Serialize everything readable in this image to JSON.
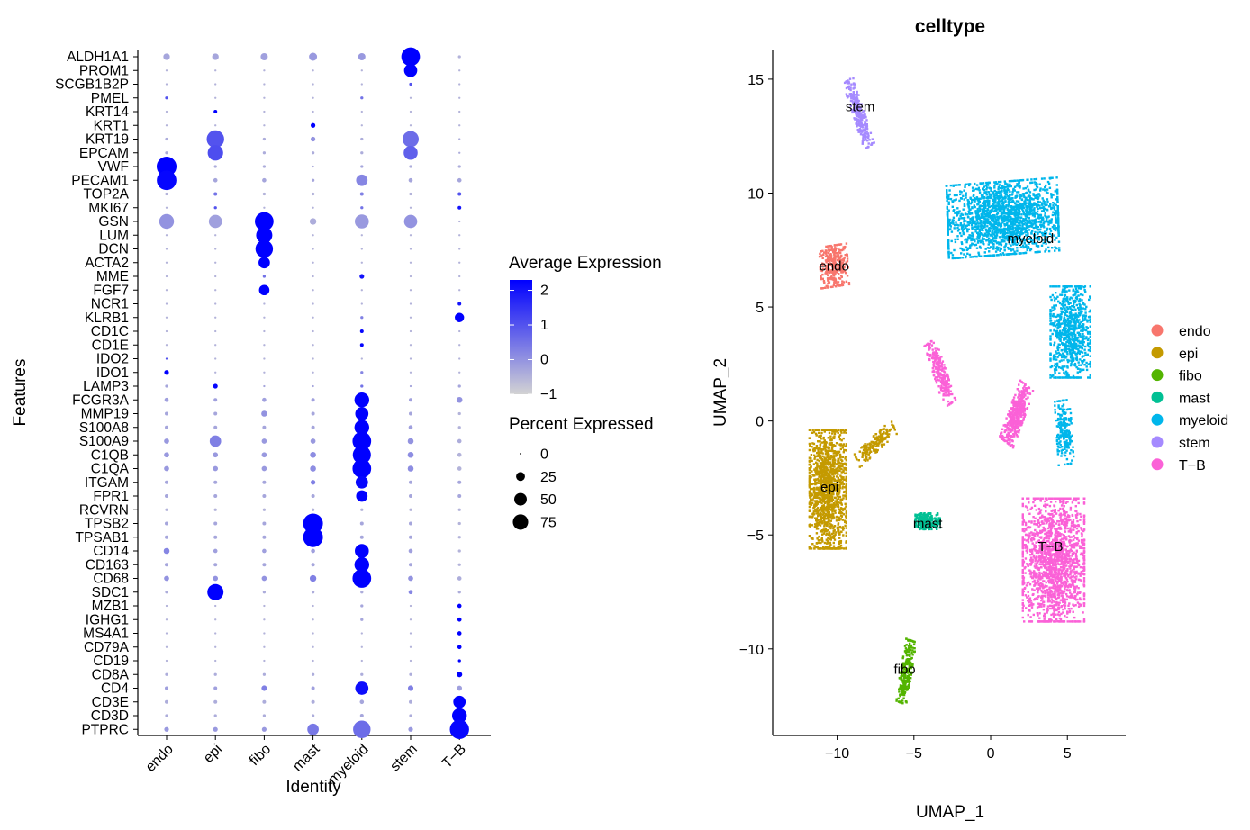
{
  "colors": {
    "expr_low": "#d3d3d3",
    "expr_high": "#0000ff",
    "endo": "#f8766d",
    "epi": "#c49a00",
    "fibo": "#53b400",
    "mast": "#00c094",
    "myeloid": "#00b6eb",
    "stem": "#a58aff",
    "T-B": "#fb61d7"
  },
  "chart_data": [
    {
      "type": "scatter",
      "subtype": "dotplot",
      "title": "",
      "xlabel": "Identity",
      "ylabel": "Features",
      "identities": [
        "endo",
        "epi",
        "fibo",
        "mast",
        "myeloid",
        "stem",
        "T−B"
      ],
      "features": [
        "ALDH1A1",
        "PROM1",
        "SCGB1B2P",
        "PMEL",
        "KRT14",
        "KRT1",
        "KRT19",
        "EPCAM",
        "VWF",
        "PECAM1",
        "TOP2A",
        "MKI67",
        "GSN",
        "LUM",
        "DCN",
        "ACTA2",
        "MME",
        "FGF7",
        "NCR1",
        "KLRB1",
        "CD1C",
        "CD1E",
        "IDO2",
        "IDO1",
        "LAMP3",
        "FCGR3A",
        "MMP19",
        "S100A8",
        "S100A9",
        "C1QB",
        "C1QA",
        "ITGAM",
        "FPR1",
        "RCVRN",
        "TPSB2",
        "TPSAB1",
        "CD14",
        "CD163",
        "CD68",
        "SDC1",
        "MZB1",
        "IGHG1",
        "MS4A1",
        "CD79A",
        "CD19",
        "CD8A",
        "CD4",
        "CD3E",
        "CD3D",
        "PTPRC"
      ],
      "percent_expressed": [
        [
          10,
          10,
          12,
          15,
          12,
          80,
          2
        ],
        [
          1,
          1,
          1,
          1,
          1,
          40,
          1
        ],
        [
          1,
          1,
          1,
          1,
          1,
          2,
          1
        ],
        [
          2,
          1,
          1,
          1,
          2,
          1,
          1
        ],
        [
          1,
          3,
          1,
          1,
          1,
          1,
          1
        ],
        [
          1,
          1,
          1,
          5,
          1,
          1,
          1
        ],
        [
          2,
          70,
          2,
          5,
          2,
          60,
          1
        ],
        [
          2,
          55,
          2,
          2,
          2,
          45,
          1
        ],
        [
          90,
          2,
          2,
          1,
          2,
          2,
          2
        ],
        [
          88,
          4,
          4,
          2,
          30,
          4,
          4
        ],
        [
          2,
          3,
          2,
          2,
          3,
          2,
          3
        ],
        [
          1,
          2,
          1,
          1,
          2,
          1,
          3
        ],
        [
          50,
          40,
          80,
          10,
          45,
          40,
          1
        ],
        [
          1,
          1,
          60,
          1,
          1,
          1,
          1
        ],
        [
          1,
          1,
          70,
          1,
          1,
          1,
          1
        ],
        [
          1,
          1,
          30,
          1,
          1,
          1,
          1
        ],
        [
          1,
          1,
          2,
          1,
          5,
          1,
          1
        ],
        [
          1,
          1,
          25,
          1,
          1,
          1,
          1
        ],
        [
          1,
          1,
          1,
          1,
          1,
          1,
          3
        ],
        [
          1,
          1,
          1,
          1,
          2,
          1,
          20
        ],
        [
          1,
          1,
          1,
          1,
          3,
          1,
          1
        ],
        [
          1,
          1,
          1,
          1,
          3,
          1,
          1
        ],
        [
          1,
          1,
          1,
          1,
          1,
          1,
          1
        ],
        [
          5,
          1,
          1,
          1,
          2,
          1,
          1
        ],
        [
          2,
          5,
          1,
          1,
          2,
          1,
          2
        ],
        [
          4,
          3,
          4,
          3,
          50,
          3,
          8
        ],
        [
          3,
          3,
          8,
          3,
          40,
          3,
          2
        ],
        [
          3,
          3,
          3,
          3,
          50,
          4,
          2
        ],
        [
          6,
          30,
          6,
          6,
          80,
          8,
          4
        ],
        [
          6,
          6,
          6,
          8,
          75,
          8,
          4
        ],
        [
          6,
          6,
          6,
          8,
          80,
          8,
          4
        ],
        [
          3,
          3,
          3,
          5,
          35,
          3,
          3
        ],
        [
          3,
          3,
          3,
          3,
          30,
          3,
          3
        ],
        [
          2,
          2,
          2,
          2,
          2,
          2,
          2
        ],
        [
          3,
          3,
          3,
          90,
          3,
          3,
          2
        ],
        [
          3,
          3,
          3,
          90,
          3,
          3,
          2
        ],
        [
          8,
          4,
          4,
          4,
          45,
          4,
          2
        ],
        [
          3,
          3,
          3,
          3,
          50,
          3,
          2
        ],
        [
          6,
          6,
          6,
          10,
          80,
          6,
          4
        ],
        [
          2,
          60,
          2,
          2,
          2,
          4,
          2
        ],
        [
          1,
          1,
          1,
          1,
          2,
          1,
          4
        ],
        [
          1,
          1,
          1,
          1,
          2,
          1,
          4
        ],
        [
          1,
          1,
          1,
          1,
          1,
          1,
          4
        ],
        [
          1,
          1,
          1,
          1,
          1,
          1,
          4
        ],
        [
          1,
          1,
          1,
          1,
          1,
          1,
          2
        ],
        [
          2,
          2,
          2,
          2,
          2,
          2,
          7
        ],
        [
          3,
          3,
          7,
          3,
          40,
          7,
          6
        ],
        [
          3,
          3,
          3,
          3,
          4,
          3,
          35
        ],
        [
          2,
          2,
          2,
          2,
          3,
          2,
          50
        ],
        [
          5,
          5,
          5,
          30,
          70,
          5,
          85
        ]
      ],
      "average_expression": [
        [
          -0.3,
          -0.3,
          -0.2,
          -0.1,
          -0.1,
          2.3,
          -0.5
        ],
        [
          -0.5,
          -0.5,
          -0.5,
          -0.5,
          -0.5,
          2.3,
          -0.5
        ],
        [
          -0.5,
          -0.5,
          -0.5,
          -0.5,
          -0.5,
          1.0,
          -0.5
        ],
        [
          1.0,
          -0.5,
          -0.5,
          -0.5,
          0.5,
          -0.5,
          -0.5
        ],
        [
          -0.5,
          2.3,
          -0.5,
          -0.5,
          -0.5,
          -0.5,
          -0.5
        ],
        [
          -0.5,
          -0.5,
          -0.5,
          2.3,
          -0.5,
          -0.5,
          -0.5
        ],
        [
          -0.4,
          1.0,
          -0.4,
          0.0,
          -0.4,
          0.6,
          -0.4
        ],
        [
          -0.4,
          1.1,
          -0.4,
          -0.4,
          -0.4,
          0.8,
          -0.4
        ],
        [
          2.3,
          -0.4,
          -0.4,
          -0.4,
          -0.3,
          -0.4,
          -0.4
        ],
        [
          2.2,
          -0.3,
          -0.3,
          -0.3,
          0.2,
          -0.3,
          -0.3
        ],
        [
          -0.5,
          0.5,
          -0.5,
          -0.5,
          0.3,
          -0.5,
          1.0
        ],
        [
          -0.5,
          1.0,
          -0.5,
          -0.5,
          0.5,
          -0.5,
          2.0
        ],
        [
          0.0,
          -0.2,
          2.3,
          -0.4,
          -0.1,
          0.0,
          -0.5
        ],
        [
          -0.5,
          -0.5,
          2.3,
          -0.5,
          -0.5,
          -0.5,
          -0.5
        ],
        [
          -0.5,
          -0.5,
          2.3,
          -0.5,
          -0.5,
          -0.5,
          -0.5
        ],
        [
          -0.5,
          -0.5,
          2.3,
          -0.5,
          -0.5,
          -0.5,
          -0.5
        ],
        [
          -0.5,
          -0.5,
          0.5,
          -0.5,
          2.0,
          -0.5,
          -0.5
        ],
        [
          -0.5,
          -0.5,
          2.3,
          -0.5,
          -0.5,
          -0.5,
          -0.5
        ],
        [
          -0.5,
          -0.5,
          -0.5,
          -0.5,
          -0.5,
          -0.5,
          2.0
        ],
        [
          -0.5,
          -0.5,
          -0.5,
          -0.5,
          0.3,
          -0.5,
          2.3
        ],
        [
          -0.5,
          -0.5,
          -0.5,
          -0.5,
          2.2,
          -0.5,
          -0.5
        ],
        [
          -0.5,
          -0.5,
          -0.5,
          -0.5,
          2.2,
          -0.5,
          -0.5
        ],
        [
          1.0,
          -0.5,
          -0.5,
          -0.5,
          -0.5,
          -0.5,
          -0.5
        ],
        [
          2.3,
          -0.5,
          -0.5,
          -0.5,
          0.2,
          -0.5,
          -0.5
        ],
        [
          -0.3,
          2.2,
          -0.3,
          -0.3,
          0.5,
          -0.3,
          -0.3
        ],
        [
          -0.2,
          -0.2,
          -0.2,
          -0.2,
          2.3,
          -0.2,
          0.0
        ],
        [
          -0.3,
          -0.3,
          0.0,
          -0.3,
          2.3,
          -0.3,
          -0.5
        ],
        [
          -0.3,
          -0.3,
          -0.3,
          -0.3,
          2.3,
          -0.2,
          -0.5
        ],
        [
          -0.1,
          0.3,
          -0.1,
          -0.1,
          2.3,
          0.0,
          -0.4
        ],
        [
          -0.1,
          -0.1,
          -0.1,
          0.1,
          2.3,
          0.1,
          -0.5
        ],
        [
          -0.1,
          -0.1,
          -0.1,
          0.1,
          2.3,
          0.1,
          -0.5
        ],
        [
          -0.3,
          -0.3,
          -0.3,
          0.3,
          2.2,
          -0.3,
          -0.3
        ],
        [
          -0.3,
          -0.3,
          -0.3,
          -0.3,
          2.3,
          -0.3,
          -0.3
        ],
        [
          -0.5,
          -0.5,
          -0.5,
          -0.5,
          -0.5,
          -0.5,
          -0.5
        ],
        [
          -0.3,
          -0.3,
          -0.3,
          2.3,
          -0.3,
          -0.3,
          -0.5
        ],
        [
          -0.3,
          -0.3,
          -0.3,
          2.3,
          -0.3,
          -0.3,
          -0.5
        ],
        [
          0.2,
          -0.2,
          -0.2,
          -0.2,
          2.3,
          -0.2,
          -0.5
        ],
        [
          -0.3,
          -0.3,
          -0.3,
          -0.3,
          2.3,
          -0.3,
          -0.5
        ],
        [
          0.0,
          0.0,
          0.0,
          0.3,
          2.3,
          0.0,
          -0.4
        ],
        [
          -0.4,
          2.3,
          -0.4,
          -0.4,
          -0.4,
          0.2,
          -0.4
        ],
        [
          -0.5,
          -0.5,
          -0.5,
          -0.5,
          -0.3,
          -0.5,
          2.3
        ],
        [
          -0.5,
          -0.5,
          -0.5,
          -0.5,
          -0.3,
          -0.5,
          2.3
        ],
        [
          -0.5,
          -0.5,
          -0.5,
          -0.5,
          -0.5,
          -0.5,
          2.3
        ],
        [
          -0.5,
          -0.5,
          -0.5,
          -0.5,
          -0.5,
          -0.5,
          2.3
        ],
        [
          -0.5,
          -0.5,
          -0.5,
          -0.5,
          -0.5,
          -0.5,
          2.3
        ],
        [
          -0.4,
          -0.4,
          -0.4,
          -0.4,
          -0.4,
          -0.4,
          2.3
        ],
        [
          -0.2,
          -0.2,
          0.3,
          -0.2,
          2.1,
          0.3,
          -0.2
        ],
        [
          -0.4,
          -0.4,
          -0.4,
          -0.4,
          -0.3,
          -0.4,
          2.3
        ],
        [
          -0.4,
          -0.4,
          -0.4,
          -0.4,
          -0.3,
          -0.4,
          2.3
        ],
        [
          -0.1,
          -0.1,
          -0.1,
          0.4,
          0.6,
          -0.1,
          2.2
        ]
      ],
      "color_scale": {
        "title": "Average Expression",
        "ticks": [
          2,
          1,
          0,
          -1
        ],
        "range": [
          -1,
          2.3
        ]
      },
      "size_scale": {
        "title": "Percent Expressed",
        "ticks": [
          0,
          25,
          50,
          75
        ]
      }
    },
    {
      "type": "scatter",
      "subtype": "umap",
      "title": "celltype",
      "xlabel": "UMAP_1",
      "ylabel": "UMAP_2",
      "xlim": [
        -14.2,
        8.8
      ],
      "ylim": [
        -13.8,
        16.3
      ],
      "xticks": [
        -10,
        -5,
        0,
        5
      ],
      "yticks": [
        -10,
        -5,
        0,
        5,
        10,
        15
      ],
      "xtick_labels": [
        "−10",
        "−5",
        "0",
        "5"
      ],
      "ytick_labels": [
        "−10",
        "−5",
        "0",
        "5",
        "10",
        "15"
      ],
      "legend_position": "right",
      "legend": [
        "endo",
        "epi",
        "fibo",
        "mast",
        "myeloid",
        "stem",
        "T−B"
      ],
      "clusters": [
        {
          "name": "stem",
          "label": "stem",
          "label_at": [
            -8.5,
            13.8
          ],
          "center": [
            -8.6,
            13.5
          ],
          "spread": [
            0.35,
            1.6
          ],
          "tilt": 0.45,
          "count": 260
        },
        {
          "name": "endo",
          "label": "endo",
          "label_at": [
            -10.2,
            6.8
          ],
          "center": [
            -10.2,
            6.8
          ],
          "spread": [
            0.9,
            0.9
          ],
          "tilt": 0.1,
          "count": 320
        },
        {
          "name": "myeloid",
          "label": "myeloid",
          "label_at": [
            2.6,
            8.0
          ],
          "center": [
            0.8,
            8.9
          ],
          "spread": [
            3.6,
            1.6
          ],
          "tilt": 0.05,
          "count": 1900
        },
        {
          "name": "myeloid",
          "label": "",
          "label_at": null,
          "center": [
            5.2,
            3.9
          ],
          "spread": [
            1.3,
            2.0
          ],
          "tilt": 0.0,
          "count": 800
        },
        {
          "name": "myeloid",
          "label": "",
          "label_at": null,
          "center": [
            4.8,
            -0.5
          ],
          "spread": [
            0.5,
            1.4
          ],
          "tilt": 0.1,
          "count": 200
        },
        {
          "name": "epi",
          "label": "epi",
          "label_at": [
            -10.5,
            -2.9
          ],
          "center": [
            -10.6,
            -3.0
          ],
          "spread": [
            1.2,
            2.6
          ],
          "tilt": 0.0,
          "count": 1300
        },
        {
          "name": "epi",
          "label": "",
          "label_at": null,
          "center": [
            -7.5,
            -1.0
          ],
          "spread": [
            1.4,
            0.35
          ],
          "tilt": 0.55,
          "count": 180
        },
        {
          "name": "mast",
          "label": "mast",
          "label_at": [
            -4.1,
            -4.5
          ],
          "center": [
            -4.1,
            -4.4
          ],
          "spread": [
            0.8,
            0.35
          ],
          "tilt": 0.0,
          "count": 220
        },
        {
          "name": "T-B",
          "label": "T−B",
          "label_at": [
            3.9,
            -5.5
          ],
          "center": [
            4.1,
            -6.1
          ],
          "spread": [
            2.0,
            2.7
          ],
          "tilt": 0.0,
          "count": 1700
        },
        {
          "name": "T-B",
          "label": "",
          "label_at": null,
          "center": [
            1.7,
            0.3
          ],
          "spread": [
            0.5,
            1.4
          ],
          "tilt": -0.5,
          "count": 400
        },
        {
          "name": "T-B",
          "label": "",
          "label_at": null,
          "center": [
            -3.3,
            2.1
          ],
          "spread": [
            0.4,
            1.5
          ],
          "tilt": 0.45,
          "count": 240
        },
        {
          "name": "fibo",
          "label": "fibo",
          "label_at": [
            -5.6,
            -10.9
          ],
          "center": [
            -5.5,
            -11.0
          ],
          "spread": [
            0.35,
            1.4
          ],
          "tilt": -0.25,
          "count": 260
        }
      ]
    }
  ]
}
